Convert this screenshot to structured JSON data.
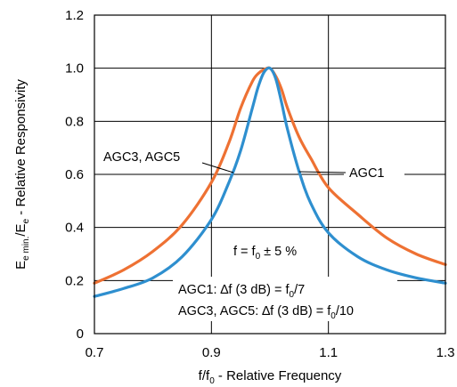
{
  "chart_data": {
    "type": "line",
    "xlabel": {
      "main": "f/f",
      "sub": "0",
      "rest": " - Relative Frequency"
    },
    "ylabel": {
      "main": "E",
      "sub": "e min.",
      "mid": "/E",
      "sub2": "e",
      "rest": " - Relative Responsivity"
    },
    "xlim": [
      0.7,
      1.3
    ],
    "ylim": [
      0,
      1.2
    ],
    "x_ticks": [
      "0.7",
      "0.9",
      "1.1",
      "1.3"
    ],
    "y_ticks": [
      "0",
      "0.2",
      "0.4",
      "0.6",
      "0.8",
      "1.0",
      "1.2"
    ],
    "grid": true,
    "series": [
      {
        "name": "AGC1",
        "color": "#ee7133",
        "x": [
          0.7,
          0.75,
          0.8,
          0.85,
          0.9,
          0.93,
          0.95,
          0.97,
          0.98,
          0.99,
          1.0,
          1.01,
          1.02,
          1.03,
          1.05,
          1.07,
          1.1,
          1.15,
          1.2,
          1.25,
          1.3
        ],
        "y": [
          0.19,
          0.24,
          0.31,
          0.41,
          0.57,
          0.72,
          0.85,
          0.95,
          0.98,
          0.995,
          1.0,
          0.97,
          0.92,
          0.85,
          0.74,
          0.66,
          0.55,
          0.45,
          0.36,
          0.3,
          0.26
        ]
      },
      {
        "name": "AGC3, AGC5",
        "color": "#2e8fcf",
        "x": [
          0.7,
          0.75,
          0.8,
          0.85,
          0.9,
          0.93,
          0.95,
          0.97,
          0.98,
          0.99,
          1.0,
          1.01,
          1.02,
          1.03,
          1.05,
          1.07,
          1.1,
          1.15,
          1.2,
          1.25,
          1.3
        ],
        "y": [
          0.14,
          0.17,
          0.21,
          0.29,
          0.43,
          0.57,
          0.69,
          0.85,
          0.93,
          0.985,
          1.0,
          0.96,
          0.87,
          0.77,
          0.61,
          0.49,
          0.38,
          0.29,
          0.24,
          0.21,
          0.19
        ]
      }
    ],
    "annotations": {
      "agc35_label": "AGC3, AGC5",
      "agc1_label": "AGC1",
      "tolerance": {
        "main": "f = f",
        "sub": "0",
        "rest": " ± 5 %"
      },
      "bandwidth_line1": {
        "main": "AGC1: ∆f (3 dB) = f",
        "sub": "0",
        "rest": "/7"
      },
      "bandwidth_line2": {
        "main": "AGC3, AGC5: ∆f (3 dB) = f",
        "sub": "0",
        "rest": "/10"
      }
    }
  }
}
